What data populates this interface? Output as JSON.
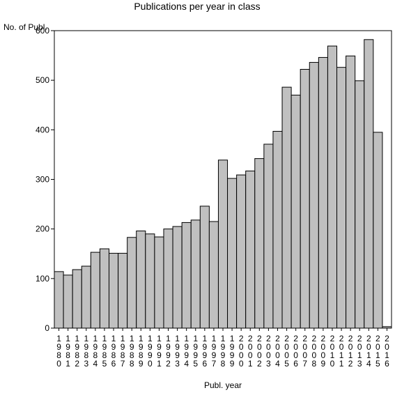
{
  "chart_data": {
    "type": "bar",
    "title": "Publications per year in class",
    "xlabel": "Publ. year",
    "ylabel": "No. of Publ.",
    "ylim": [
      0,
      600
    ],
    "yticks": [
      0,
      100,
      200,
      300,
      400,
      500,
      600
    ],
    "grid": false,
    "colors": {
      "bar_fill": "#c0c0c0",
      "bar_stroke": "#000000",
      "background": "#ffffff"
    },
    "categories": [
      "1980",
      "1981",
      "1982",
      "1983",
      "1984",
      "1985",
      "1986",
      "1987",
      "1988",
      "1989",
      "1990",
      "1991",
      "1992",
      "1993",
      "1994",
      "1995",
      "1996",
      "1997",
      "1998",
      "1999",
      "2000",
      "2001",
      "2002",
      "2003",
      "2004",
      "2005",
      "2006",
      "2007",
      "2008",
      "2009",
      "2010",
      "2011",
      "2012",
      "2013",
      "2014",
      "2015",
      "2016"
    ],
    "values": [
      114,
      107,
      118,
      125,
      153,
      160,
      151,
      151,
      183,
      196,
      190,
      184,
      200,
      205,
      213,
      218,
      246,
      215,
      339,
      302,
      309,
      317,
      342,
      371,
      397,
      486,
      470,
      522,
      536,
      546,
      569,
      526,
      549,
      499,
      582,
      395,
      3
    ]
  }
}
